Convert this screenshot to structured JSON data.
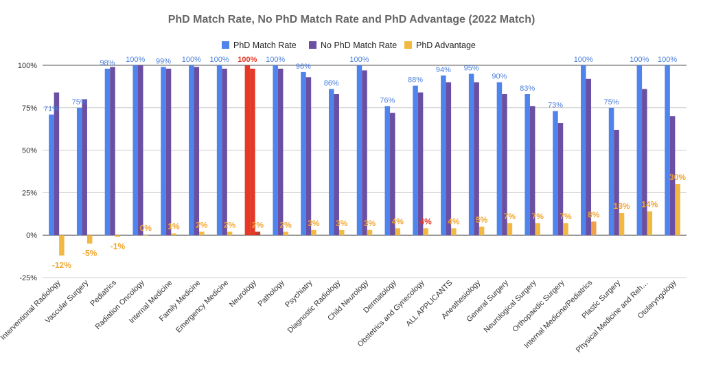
{
  "chart_data": {
    "type": "bar",
    "title": "PhD Match Rate, No PhD Match Rate and PhD Advantage (2022 Match)",
    "legend_position": "top",
    "ylim": [
      -25,
      100
    ],
    "yticks": [
      -25,
      0,
      25,
      50,
      75,
      100
    ],
    "ytick_labels": [
      "-25%",
      "0%",
      "25%",
      "50%",
      "75%",
      "100%"
    ],
    "grid": true,
    "categories": [
      "Interventional Radiology",
      "Vascular Surgery",
      "Pediatrics",
      "Radiation Oncology",
      "Internal Medicine",
      "Family Medicine",
      "Emergency Medicine",
      "Neurology",
      "Pathology",
      "Psychiatry",
      "Diagnostic Radiology",
      "Child Neurology",
      "Dermatology",
      "Obstetrics and Gynecology",
      "ALL APPLICANTS",
      "Anesthesiology",
      "General Surgery",
      "Neurological Surgery",
      "Orthopaedic Surgery",
      "Internal Medicine/Pediatrics",
      "Plastic Surgery",
      "Physical Medicine and Reh…",
      "Otolaryngology"
    ],
    "series": [
      {
        "name": "PhD Match Rate",
        "color": "#4e84ec",
        "values": [
          71,
          75,
          98,
          100,
          99,
          100,
          100,
          100,
          100,
          96,
          86,
          100,
          76,
          88,
          94,
          95,
          90,
          83,
          73,
          100,
          75,
          100,
          100
        ],
        "data_labels": [
          "71%",
          "75%",
          "98%",
          "100%",
          "99%",
          "100%",
          "100%",
          "100%",
          "100%",
          "96%",
          "86%",
          "100%",
          "76%",
          "88%",
          "94%",
          "95%",
          "90%",
          "83%",
          "73%",
          "100%",
          "75%",
          "100%",
          "100%"
        ]
      },
      {
        "name": "No PhD Match Rate",
        "color": "#6a4fa3",
        "values": [
          84,
          80,
          99,
          100,
          98,
          99,
          98,
          98,
          98,
          93,
          83,
          97,
          72,
          84,
          90,
          90,
          83,
          76,
          66,
          92,
          62,
          86,
          70
        ]
      },
      {
        "name": "PhD Advantage",
        "color": "#f1b941",
        "values": [
          -12,
          -5,
          -1,
          0,
          1,
          2,
          2,
          2,
          2,
          3,
          3,
          3,
          4,
          4,
          4,
          5,
          7,
          7,
          7,
          8,
          13,
          14,
          30
        ],
        "data_labels": [
          "-12%",
          "-5%",
          "-1%",
          "0%",
          "1%",
          "2%",
          "2%",
          "2%",
          "2%",
          "3%",
          "3%",
          "3%",
          "4%",
          "4%",
          "4%",
          "5%",
          "7%",
          "7%",
          "7%",
          "8%",
          "13%",
          "14%",
          "30%"
        ]
      }
    ],
    "highlight": {
      "category_index": 7,
      "color": "#e53826",
      "label_color": "#e53826",
      "advantage_label_index": 13
    },
    "colors": {
      "advantage_bar_red": "#c0392b",
      "advantage_bar_orange": "#f0a04b"
    }
  }
}
